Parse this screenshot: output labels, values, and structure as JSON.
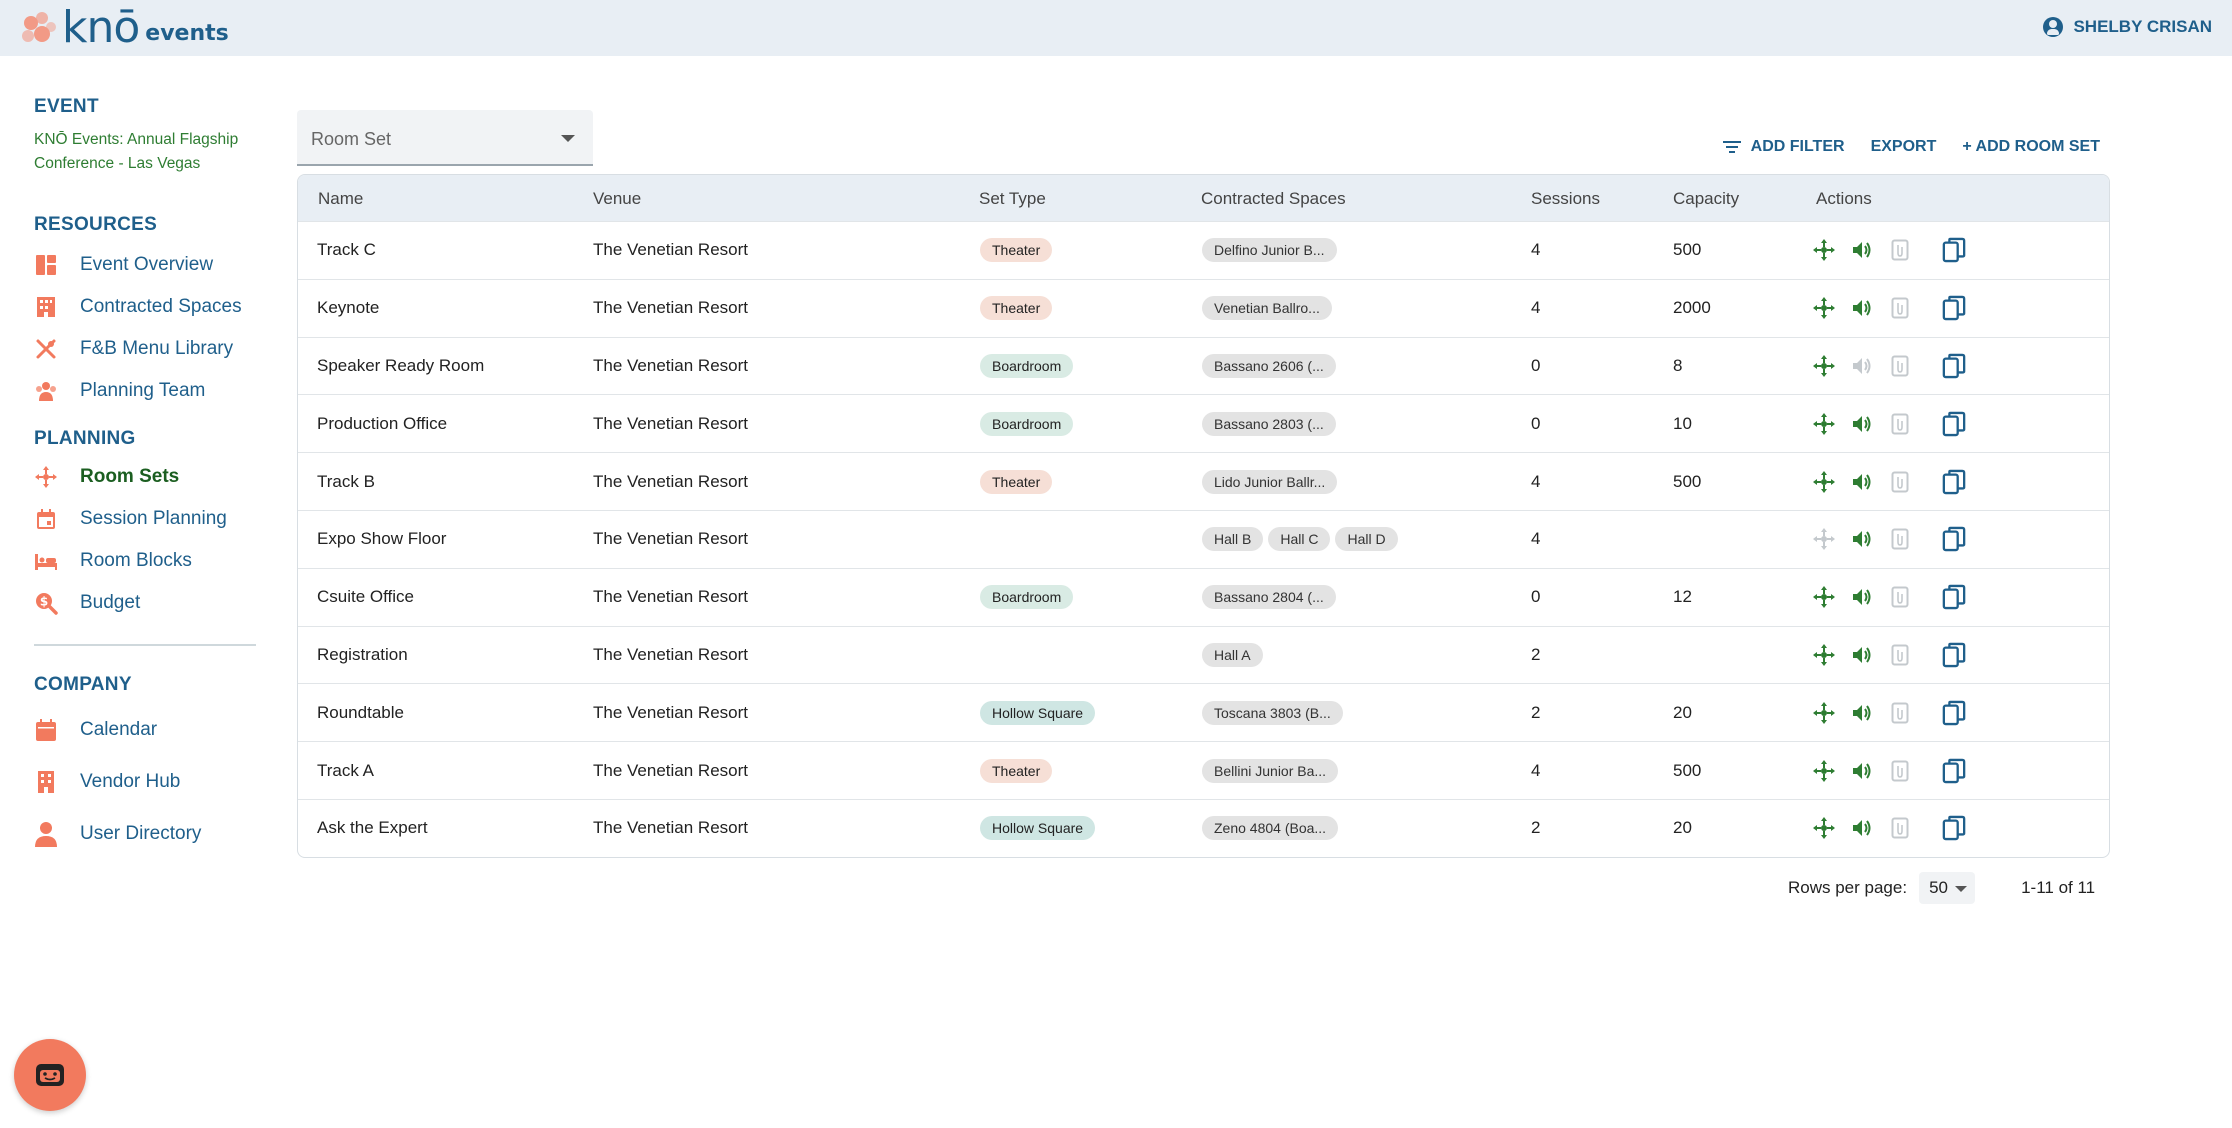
{
  "header": {
    "logo_text": "knō",
    "logo_sub": "events",
    "user_name": "SHELBY CRISAN"
  },
  "sidebar": {
    "event_title": "EVENT",
    "event_name": "KNŌ Events: Annual Flagship Conference - Las Vegas",
    "resources_title": "RESOURCES",
    "resources": [
      {
        "label": "Event Overview",
        "icon": "dashboard-icon"
      },
      {
        "label": "Contracted Spaces",
        "icon": "building-icon"
      },
      {
        "label": "F&B Menu Library",
        "icon": "utensils-icon"
      },
      {
        "label": "Planning Team",
        "icon": "group-icon"
      }
    ],
    "planning_title": "PLANNING",
    "planning": [
      {
        "label": "Room Sets",
        "icon": "move-icon",
        "active": true
      },
      {
        "label": "Session Planning",
        "icon": "calendar-icon"
      },
      {
        "label": "Room Blocks",
        "icon": "bed-icon"
      },
      {
        "label": "Budget",
        "icon": "money-search-icon"
      }
    ],
    "company_title": "COMPANY",
    "company": [
      {
        "label": "Calendar",
        "icon": "calendar-icon"
      },
      {
        "label": "Vendor Hub",
        "icon": "building-icon"
      },
      {
        "label": "User Directory",
        "icon": "person-icon"
      }
    ]
  },
  "filter": {
    "select_label": "Room Set"
  },
  "toolbar": {
    "add_filter": "ADD FILTER",
    "export": "EXPORT",
    "add_room_set": "+ ADD ROOM SET"
  },
  "table": {
    "columns": [
      "Name",
      "Venue",
      "Set Type",
      "Contracted Spaces",
      "Sessions",
      "Capacity",
      "Actions"
    ],
    "rows": [
      {
        "name": "Track C",
        "venue": "The Venetian Resort",
        "set_type": "Theater",
        "spaces": [
          "Delfino Junior B..."
        ],
        "sessions": "4",
        "capacity": "500",
        "move_enabled": true,
        "audio_enabled": true
      },
      {
        "name": "Keynote",
        "venue": "The Venetian Resort",
        "set_type": "Theater",
        "spaces": [
          "Venetian Ballro..."
        ],
        "sessions": "4",
        "capacity": "2000",
        "move_enabled": true,
        "audio_enabled": true
      },
      {
        "name": "Speaker Ready Room",
        "venue": "The Venetian Resort",
        "set_type": "Boardroom",
        "spaces": [
          "Bassano 2606 (..."
        ],
        "sessions": "0",
        "capacity": "8",
        "move_enabled": true,
        "audio_enabled": false
      },
      {
        "name": "Production Office",
        "venue": "The Venetian Resort",
        "set_type": "Boardroom",
        "spaces": [
          "Bassano 2803 (..."
        ],
        "sessions": "0",
        "capacity": "10",
        "move_enabled": true,
        "audio_enabled": true
      },
      {
        "name": "Track B",
        "venue": "The Venetian Resort",
        "set_type": "Theater",
        "spaces": [
          "Lido Junior Ballr..."
        ],
        "sessions": "4",
        "capacity": "500",
        "move_enabled": true,
        "audio_enabled": true
      },
      {
        "name": "Expo Show Floor",
        "venue": "The Venetian Resort",
        "set_type": "",
        "spaces": [
          "Hall B",
          "Hall C",
          "Hall D"
        ],
        "sessions": "4",
        "capacity": "",
        "move_enabled": false,
        "audio_enabled": true
      },
      {
        "name": "Csuite Office",
        "venue": "The Venetian Resort",
        "set_type": "Boardroom",
        "spaces": [
          "Bassano 2804 (..."
        ],
        "sessions": "0",
        "capacity": "12",
        "move_enabled": true,
        "audio_enabled": true
      },
      {
        "name": "Registration",
        "venue": "The Venetian Resort",
        "set_type": "",
        "spaces": [
          "Hall A"
        ],
        "sessions": "2",
        "capacity": "",
        "move_enabled": true,
        "audio_enabled": true
      },
      {
        "name": "Roundtable",
        "venue": "The Venetian Resort",
        "set_type": "Hollow Square",
        "spaces": [
          "Toscana 3803 (B..."
        ],
        "sessions": "2",
        "capacity": "20",
        "move_enabled": true,
        "audio_enabled": true
      },
      {
        "name": "Track A",
        "venue": "The Venetian Resort",
        "set_type": "Theater",
        "spaces": [
          "Bellini Junior Ba..."
        ],
        "sessions": "4",
        "capacity": "500",
        "move_enabled": true,
        "audio_enabled": true
      },
      {
        "name": "Ask the Expert",
        "venue": "The Venetian Resort",
        "set_type": "Hollow Square",
        "spaces": [
          "Zeno 4804 (Boa..."
        ],
        "sessions": "2",
        "capacity": "20",
        "move_enabled": true,
        "audio_enabled": true
      }
    ]
  },
  "pagination": {
    "rows_per_page_label": "Rows per page:",
    "rows_per_page": "50",
    "range": "1-11 of 11"
  },
  "colors": {
    "primary": "#1f5f8b",
    "active_green": "#1b5e20",
    "accent_coral": "#f27a5e",
    "icon_green": "#2e7d32"
  }
}
